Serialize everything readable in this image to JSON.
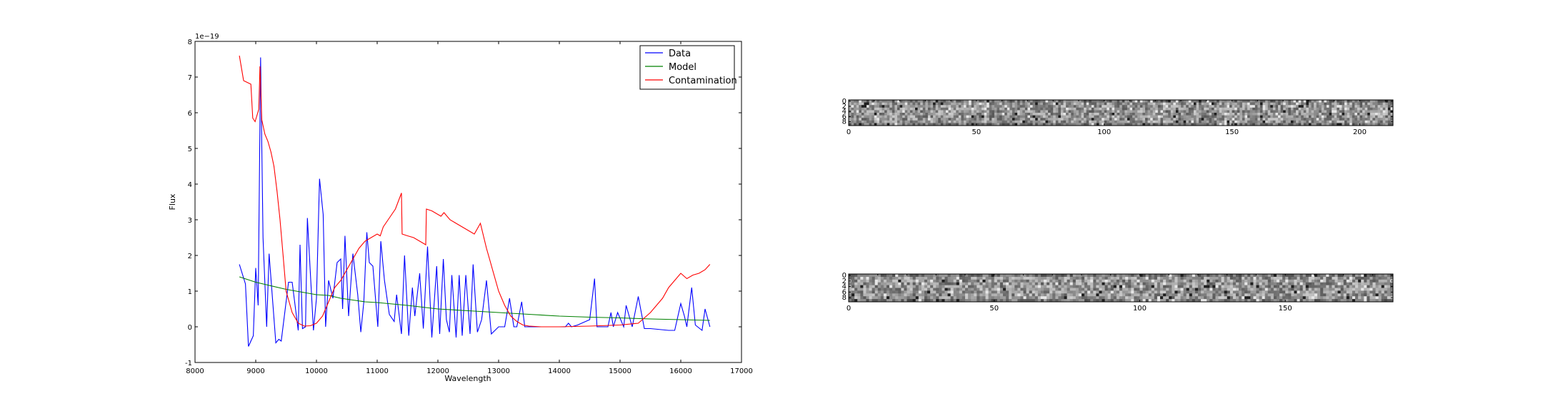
{
  "chart_data": [
    {
      "type": "line",
      "xlabel": "Wavelength",
      "ylabel": "Flux",
      "offset_text": "1e−19",
      "xlim": [
        8000,
        17000
      ],
      "ylim": [
        -1,
        8
      ],
      "xticks": [
        8000,
        9000,
        10000,
        11000,
        12000,
        13000,
        14000,
        15000,
        16000,
        17000
      ],
      "yticks": [
        -1,
        0,
        1,
        2,
        3,
        4,
        5,
        6,
        7,
        8
      ],
      "legend_position": "top-right",
      "series": [
        {
          "name": "Data",
          "color": "#0000ff",
          "x": [
            8730,
            8830,
            8880,
            8960,
            9000,
            9040,
            9080,
            9120,
            9180,
            9220,
            9330,
            9380,
            9420,
            9540,
            9600,
            9700,
            9730,
            9770,
            9820,
            9850,
            9950,
            10000,
            10050,
            10110,
            10150,
            10200,
            10270,
            10340,
            10400,
            10430,
            10470,
            10530,
            10600,
            10680,
            10730,
            10780,
            10830,
            10870,
            10930,
            11010,
            11060,
            11120,
            11200,
            11280,
            11320,
            11400,
            11450,
            11520,
            11580,
            11620,
            11700,
            11760,
            11830,
            11900,
            11980,
            12030,
            12090,
            12140,
            12190,
            12230,
            12300,
            12350,
            12400,
            12460,
            12530,
            12580,
            12650,
            12720,
            12800,
            12880,
            13000,
            13100,
            13180,
            13250,
            13300,
            13380,
            13430,
            13480,
            13550,
            13700,
            13900,
            14100,
            14150,
            14200,
            14300,
            14500,
            14580,
            14620,
            14700,
            14800,
            14850,
            14890,
            14960,
            15060,
            15100,
            15200,
            15300,
            15400,
            15500,
            15800,
            15900,
            16000,
            16060,
            16100,
            16180,
            16240,
            16350,
            16400,
            16480
          ],
          "values": [
            1.75,
            1.2,
            -0.55,
            -0.25,
            1.65,
            0.6,
            7.55,
            2.5,
            0.0,
            2.05,
            -0.45,
            -0.35,
            -0.4,
            1.25,
            1.25,
            -0.1,
            2.3,
            -0.05,
            0.0,
            3.05,
            -0.1,
            0.8,
            4.15,
            3.15,
            0.0,
            1.3,
            0.8,
            1.8,
            1.9,
            0.5,
            2.55,
            0.3,
            2.05,
            0.9,
            -0.15,
            0.7,
            2.65,
            1.8,
            1.7,
            0.0,
            2.4,
            1.3,
            0.35,
            0.15,
            0.9,
            -0.2,
            2.0,
            -0.25,
            1.1,
            0.3,
            1.5,
            -0.05,
            2.25,
            -0.3,
            1.7,
            -0.2,
            1.9,
            0.2,
            -0.15,
            1.45,
            -0.3,
            1.45,
            -0.25,
            1.45,
            -0.2,
            1.75,
            -0.15,
            0.2,
            1.3,
            -0.2,
            0.0,
            0.0,
            0.8,
            0.0,
            0.0,
            0.7,
            0.0,
            0.0,
            0.0,
            0.0,
            0.0,
            0.0,
            0.1,
            0.0,
            0.05,
            0.2,
            1.35,
            0.0,
            0.0,
            0.0,
            0.4,
            0.0,
            0.4,
            0.0,
            0.6,
            0.0,
            0.85,
            -0.05,
            -0.05,
            -0.1,
            -0.1,
            0.65,
            0.3,
            0.0,
            1.1,
            0.05,
            -0.1,
            0.5,
            0.0
          ]
        },
        {
          "name": "Model",
          "color": "#008000",
          "x": [
            8730,
            9000,
            9500,
            10000,
            10200,
            10400,
            10600,
            10800,
            11000,
            11500,
            12000,
            12500,
            13000,
            13500,
            14000,
            14500,
            15000,
            15500,
            16000,
            16480
          ],
          "values": [
            1.4,
            1.25,
            1.05,
            0.9,
            0.88,
            0.8,
            0.75,
            0.7,
            0.68,
            0.6,
            0.5,
            0.45,
            0.4,
            0.35,
            0.3,
            0.27,
            0.25,
            0.22,
            0.2,
            0.18
          ]
        },
        {
          "name": "Contamination",
          "color": "#ff0000",
          "x": [
            8730,
            8800,
            8920,
            8950,
            8990,
            9050,
            9070,
            9100,
            9150,
            9200,
            9250,
            9300,
            9350,
            9400,
            9450,
            9500,
            9600,
            9700,
            9800,
            9900,
            10000,
            10100,
            10200,
            10300,
            10400,
            10500,
            10600,
            10700,
            10800,
            10900,
            11000,
            11050,
            11100,
            11200,
            11300,
            11400,
            11410,
            11500,
            11600,
            11700,
            11800,
            11810,
            11900,
            12000,
            12050,
            12100,
            12200,
            12300,
            12400,
            12500,
            12600,
            12700,
            12800,
            12850,
            12900,
            13000,
            13100,
            13200,
            13300,
            13400,
            13500,
            13700,
            14000,
            14500,
            15000,
            15300,
            15500,
            15700,
            15800,
            15900,
            16000,
            16100,
            16200,
            16300,
            16400,
            16480
          ],
          "values": [
            7.6,
            6.9,
            6.8,
            5.85,
            5.75,
            6.1,
            7.3,
            5.8,
            5.4,
            5.2,
            4.9,
            4.5,
            3.8,
            3.0,
            2.0,
            1.0,
            0.4,
            0.1,
            0.02,
            0.03,
            0.1,
            0.3,
            0.7,
            1.1,
            1.3,
            1.6,
            1.9,
            2.2,
            2.4,
            2.5,
            2.6,
            2.55,
            2.8,
            3.05,
            3.3,
            3.75,
            2.6,
            2.55,
            2.5,
            2.4,
            2.3,
            3.3,
            3.25,
            3.15,
            3.1,
            3.2,
            3.0,
            2.9,
            2.8,
            2.7,
            2.6,
            2.9,
            2.2,
            1.9,
            1.6,
            1.0,
            0.6,
            0.3,
            0.15,
            0.05,
            0.02,
            0.0,
            0.0,
            0.02,
            0.05,
            0.1,
            0.4,
            0.8,
            1.1,
            1.3,
            1.5,
            1.35,
            1.45,
            1.5,
            1.6,
            1.75
          ]
        }
      ]
    },
    {
      "type": "heatmap",
      "colormap": "gray",
      "rows": 10,
      "cols": 213,
      "xticks": [
        0,
        50,
        100,
        150,
        200
      ],
      "yticks": [
        0,
        2,
        4,
        6,
        8
      ]
    },
    {
      "type": "heatmap",
      "colormap": "gray",
      "rows": 10,
      "cols": 187,
      "xticks": [
        0,
        50,
        100,
        150
      ],
      "yticks": [
        0,
        2,
        4,
        6,
        8
      ]
    }
  ]
}
